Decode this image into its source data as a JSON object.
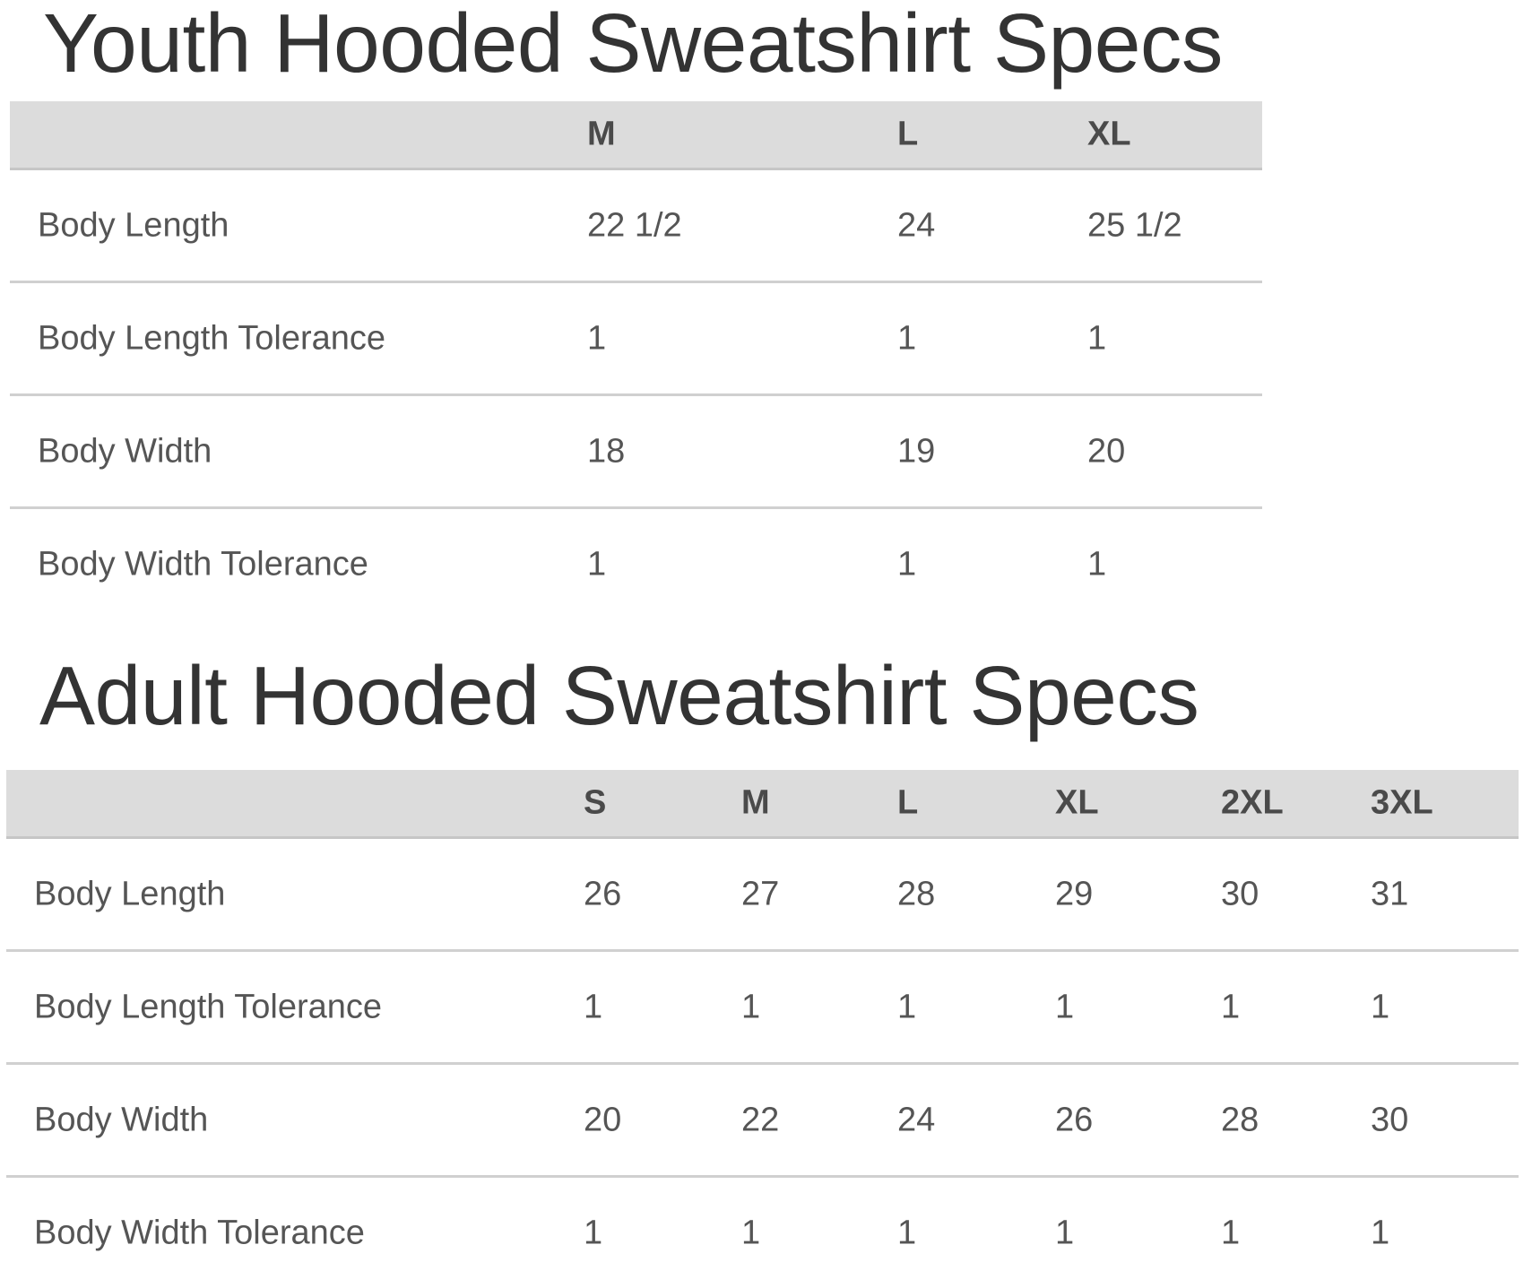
{
  "youth": {
    "title": "Youth Hooded Sweatshirt Specs",
    "sizes": [
      "M",
      "L",
      "XL"
    ],
    "rows": [
      {
        "label": "Body Length",
        "values": [
          "22 1/2",
          "24",
          "25 1/2"
        ]
      },
      {
        "label": "Body Length Tolerance",
        "values": [
          "1",
          "1",
          "1"
        ]
      },
      {
        "label": "Body Width",
        "values": [
          "18",
          "19",
          "20"
        ]
      },
      {
        "label": "Body Width Tolerance",
        "values": [
          "1",
          "1",
          "1"
        ]
      }
    ]
  },
  "adult": {
    "title": "Adult Hooded Sweatshirt Specs",
    "sizes": [
      "S",
      "M",
      "L",
      "XL",
      "2XL",
      "3XL"
    ],
    "rows": [
      {
        "label": "Body Length",
        "values": [
          "26",
          "27",
          "28",
          "29",
          "30",
          "31"
        ]
      },
      {
        "label": "Body Length Tolerance",
        "values": [
          "1",
          "1",
          "1",
          "1",
          "1",
          "1"
        ]
      },
      {
        "label": "Body Width",
        "values": [
          "20",
          "22",
          "24",
          "26",
          "28",
          "30"
        ]
      },
      {
        "label": "Body Width Tolerance",
        "values": [
          "1",
          "1",
          "1",
          "1",
          "1",
          "1"
        ]
      }
    ]
  }
}
